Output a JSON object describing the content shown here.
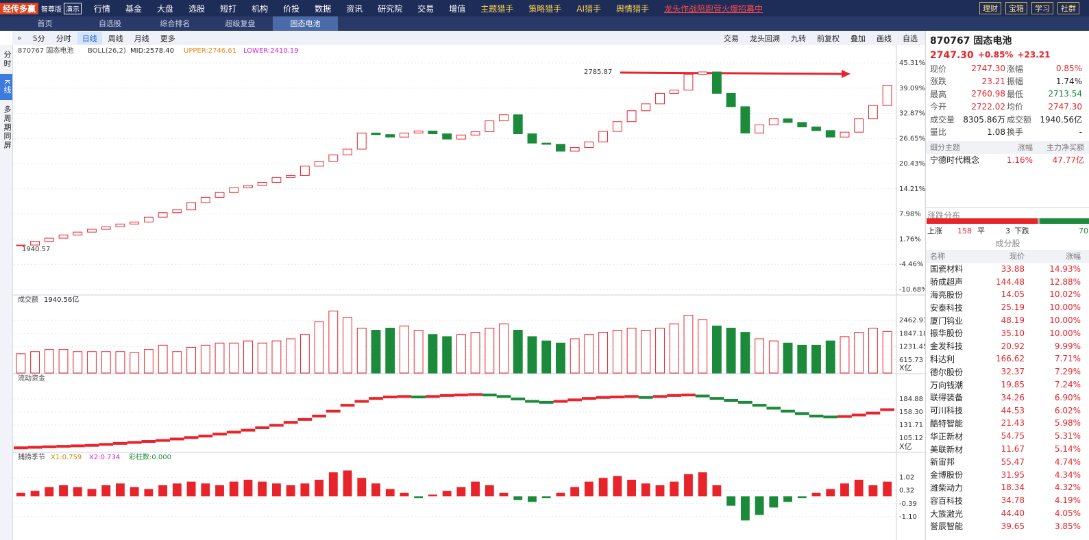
{
  "menu": {
    "logo": "经传多赢",
    "edition": "智尊版",
    "demo": "演示",
    "items": [
      "行情",
      "基金",
      "大盘",
      "选股",
      "短打",
      "机构",
      "价投",
      "数据",
      "资讯",
      "研究院",
      "交易",
      "增值",
      "主题猎手",
      "策略猎手",
      "AI猎手",
      "舆情猎手"
    ],
    "promo": "龙头作战陪跑营火爆招募中",
    "buttons": [
      "理财",
      "宝箱",
      "学习",
      "社群"
    ],
    "zoom": "100%"
  },
  "tabs": [
    "首页",
    "自选股",
    "综合排名",
    "超级复盘",
    "固态电池"
  ],
  "sidebar": [
    "分时",
    "K线",
    "多周期同屏"
  ],
  "toolbar": {
    "periods": [
      "5分",
      "分时",
      "日线",
      "周线",
      "月线",
      "更多"
    ],
    "tools": [
      "交易",
      "龙头回溯",
      "九转",
      "前复权",
      "叠加",
      "画线",
      "自选"
    ]
  },
  "chart_data": [
    {
      "type": "candlestick",
      "title": "870767 固态电池",
      "indicator": "BOLL(26,2)",
      "mid": "MID:2578.40",
      "upper": "UPPER:2746.61",
      "lower": "LOWER:2410.19",
      "annotations": [
        "2785.87",
        "1940.57"
      ],
      "up_color": "#e8242b",
      "down_color": "#1b8a3a",
      "values": [
        0.3,
        1.2,
        2.0,
        2.8,
        3.5,
        4.2,
        4.8,
        5.5,
        6.0,
        7.2,
        8.3,
        9.0,
        10.8,
        12.1,
        13.3,
        14.5,
        15.0,
        15.8,
        17.0,
        17.5,
        19.8,
        21.0,
        22.6,
        24.0,
        28.0,
        27.6,
        27.0,
        28.0,
        28.5,
        27.8,
        26.5,
        27.5,
        28.3,
        31.0,
        32.5,
        27.8,
        25.5,
        25.2,
        23.5,
        24.4,
        25.8,
        28.4,
        30.8,
        33.5,
        35.2,
        37.8,
        38.6,
        42.5,
        43.1,
        37.8,
        34.5,
        28.0,
        30.0,
        31.5,
        30.6,
        29.5,
        28.6,
        27.0,
        28.2,
        31.5,
        34.8,
        39.8
      ],
      "ylim": [
        -11.53,
        49.03
      ],
      "yticks": [
        {
          "value": 45.31,
          "label": "45.31%"
        },
        {
          "value": 39.09,
          "label": "39.09%"
        },
        {
          "value": 32.87,
          "label": "32.87%"
        },
        {
          "value": 26.65,
          "label": "26.65%"
        },
        {
          "value": 20.43,
          "label": "20.43%"
        },
        {
          "value": 14.21,
          "label": "14.21%"
        },
        {
          "value": 7.98,
          "label": "7.98%"
        },
        {
          "value": 1.76,
          "label": "1.76%"
        },
        {
          "value": -4.46,
          "label": "-4.46%"
        },
        {
          "value": -10.68,
          "label": "-10.68%"
        }
      ]
    },
    {
      "type": "bar",
      "title": "成交额",
      "last": "1940.56亿",
      "unit": "X亿",
      "up_color": "#e8242b",
      "down_color": "#1b8a3a",
      "values": [
        900,
        1000,
        1100,
        1100,
        1000,
        1000,
        1000,
        1000,
        950,
        1100,
        1300,
        1000,
        1200,
        1300,
        1400,
        1400,
        1500,
        1400,
        1500,
        1600,
        1800,
        2400,
        2900,
        2600,
        2100,
        2000,
        2100,
        2200,
        2000,
        1800,
        1700,
        1800,
        1900,
        2100,
        2300,
        2000,
        1700,
        1500,
        1400,
        1600,
        1800,
        1900,
        2000,
        2100,
        2000,
        2100,
        2300,
        2700,
        2500,
        2200,
        2100,
        1900,
        1600,
        1500,
        1400,
        1300,
        1300,
        1500,
        1700,
        1900,
        2100,
        1940.56
      ],
      "ylim": [
        0,
        3200
      ],
      "yticks": [
        2462.91,
        1847.18,
        1231.45,
        615.73
      ]
    },
    {
      "type": "dash",
      "title": "流动资金",
      "unit": "X亿",
      "up_color": "#e8242b",
      "down_color": "#1b8a3a",
      "values": [
        85,
        86,
        87,
        88,
        89,
        90,
        92,
        94,
        96,
        98,
        100,
        103,
        106,
        109,
        113,
        117,
        121,
        126,
        131,
        137,
        143,
        150,
        160,
        172,
        180,
        186,
        189,
        190,
        189,
        190,
        192,
        193,
        194,
        193,
        190,
        185,
        180,
        178,
        180,
        183,
        186,
        188,
        189,
        190,
        188,
        190,
        192,
        193,
        191,
        186,
        182,
        178,
        172,
        166,
        160,
        155,
        150,
        148,
        149,
        152,
        156,
        163
      ],
      "ylim": [
        77,
        217
      ],
      "yticks": [
        184.88,
        {
          "value": 158.3,
          "label": "158.30"
        },
        131.71,
        105.12
      ]
    },
    {
      "type": "oscillator",
      "title": "捕捞季节",
      "x1": "X1:0.759",
      "x2": "X2:0.734",
      "bars": "彩柱数:0.000",
      "up_color": "#e8242b",
      "down_color": "#1b8a3a",
      "values": [
        0.2,
        0.3,
        0.5,
        0.6,
        0.5,
        0.4,
        0.6,
        0.7,
        0.5,
        0.4,
        0.6,
        0.7,
        0.8,
        0.7,
        0.6,
        0.8,
        0.9,
        0.8,
        0.7,
        0.6,
        0.7,
        0.9,
        1.3,
        1.4,
        1.0,
        0.7,
        0.4,
        0.2,
        -0.1,
        0.1,
        0.3,
        0.5,
        0.8,
        0.6,
        0.2,
        -0.2,
        -0.3,
        -0.1,
        0.2,
        0.5,
        0.8,
        1.0,
        1.1,
        0.9,
        0.7,
        0.6,
        0.8,
        1.2,
        1.3,
        0.6,
        -0.5,
        -1.3,
        -1.0,
        -0.6,
        -0.3,
        -0.1,
        0.2,
        0.4,
        0.7,
        0.9,
        0.6,
        0.8
      ],
      "ylim": [
        -1.84,
        1.86
      ],
      "yticks": [
        1.02,
        0.32,
        -0.39,
        {
          "value": -1.1,
          "label": "-1.10"
        }
      ]
    }
  ],
  "quote": {
    "title": "870767 固态电池",
    "price": "2747.30",
    "change_pct": "+0.85%",
    "change": "+23.21",
    "rows": [
      [
        "现价",
        "2747.30",
        "涨幅",
        "0.85%"
      ],
      [
        "涨跌",
        "23.21",
        "振幅",
        "1.74%"
      ],
      [
        "最高",
        "2760.98",
        "最低",
        "2713.54"
      ],
      [
        "今开",
        "2722.02",
        "均价",
        "2747.30"
      ],
      [
        "成交量",
        "8305.86万",
        "成交额",
        "1940.56亿"
      ],
      [
        "量比",
        "1.08",
        "换手",
        "-"
      ]
    ]
  },
  "theme": {
    "headers": [
      "细分主题",
      "涨幅",
      "主力净买额"
    ],
    "rows": [
      [
        "宁德时代概念",
        "1.16%",
        "47.77亿"
      ]
    ]
  },
  "distribution": {
    "title": "涨跌分布",
    "up_label": "上涨",
    "up": 158,
    "flat_label": "平",
    "flat": 3,
    "down_label": "下跌",
    "down": 70
  },
  "constituents": {
    "title": "成分股",
    "headers": [
      "名称",
      "现价",
      "涨幅"
    ],
    "rows": [
      [
        "国瓷材料",
        "33.88",
        "14.93%"
      ],
      [
        "骄成超声",
        "144.48",
        "12.88%"
      ],
      [
        "海亮股份",
        "14.05",
        "10.02%"
      ],
      [
        "安泰科技",
        "25.19",
        "10.00%"
      ],
      [
        "厦门钨业",
        "48.19",
        "10.00%"
      ],
      [
        "振华股份",
        "35.10",
        "10.00%"
      ],
      [
        "金发科技",
        "20.92",
        "9.99%"
      ],
      [
        "科达利",
        "166.62",
        "7.71%"
      ],
      [
        "德尔股份",
        "32.37",
        "7.29%"
      ],
      [
        "万向钱潮",
        "19.85",
        "7.24%"
      ],
      [
        "联得装备",
        "34.26",
        "6.90%"
      ],
      [
        "可川科技",
        "44.53",
        "6.02%"
      ],
      [
        "酷特智能",
        "21.43",
        "5.98%"
      ],
      [
        "华正新材",
        "54.75",
        "5.31%"
      ],
      [
        "美联新材",
        "11.67",
        "5.14%"
      ],
      [
        "新宙邦",
        "55.47",
        "4.74%"
      ],
      [
        "金博股份",
        "31.95",
        "4.34%"
      ],
      [
        "潍柴动力",
        "18.34",
        "4.32%"
      ],
      [
        "容百科技",
        "34.78",
        "4.19%"
      ],
      [
        "大族激光",
        "44.40",
        "4.05%"
      ],
      [
        "誉辰智能",
        "39.65",
        "3.85%"
      ]
    ]
  }
}
